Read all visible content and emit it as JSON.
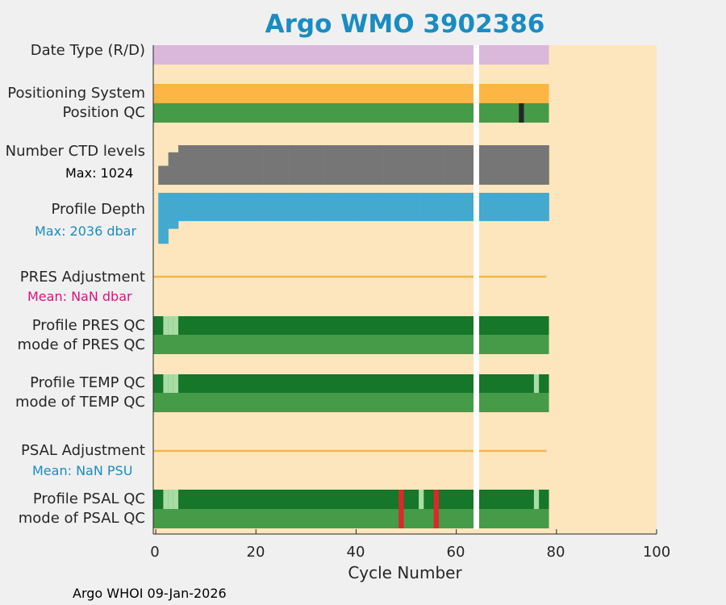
{
  "chart_data": {
    "type": "heatmap",
    "title": "Argo WMO 3902386",
    "xlabel": "Cycle Number",
    "xlim": [
      -0.5,
      100
    ],
    "xticks": [
      "0",
      "20",
      "40",
      "60",
      "80",
      "100"
    ],
    "tick_values": [
      0,
      20,
      40,
      60,
      80,
      100
    ],
    "gap_cycle": 64,
    "last_cycle": 78,
    "rows": [
      {
        "id": "date-type",
        "label": "Date Type (R/D)"
      },
      {
        "id": "positioning-system",
        "label": "Positioning System"
      },
      {
        "id": "position-qc",
        "label": "Position QC",
        "flags": [
          {
            "cycle": 73,
            "color": "#262626"
          }
        ]
      },
      {
        "id": "ctd-levels",
        "label": "Number CTD levels",
        "sub": "Max: 1024",
        "max": 1024
      },
      {
        "id": "profile-depth",
        "label": "Profile Depth",
        "sub": "Max: 2036 dbar",
        "max": 2036,
        "units": "dbar"
      },
      {
        "id": "pres-adjustment",
        "label": "PRES Adjustment",
        "sub": "Mean:  NaN dbar"
      },
      {
        "id": "profile-pres-qc",
        "label": "Profile PRES QC",
        "flags": [
          {
            "cycle": 2,
            "color": "#a9dca5"
          },
          {
            "cycle": 3,
            "color": "#a9dca5"
          },
          {
            "cycle": 4,
            "color": "#a9dca5"
          }
        ]
      },
      {
        "id": "mode-pres-qc",
        "label": "mode of PRES QC"
      },
      {
        "id": "profile-temp-qc",
        "label": "Profile TEMP QC",
        "flags": [
          {
            "cycle": 2,
            "color": "#a9dca5"
          },
          {
            "cycle": 3,
            "color": "#a9dca5"
          },
          {
            "cycle": 4,
            "color": "#a9dca5"
          },
          {
            "cycle": 76,
            "color": "#a9dca5"
          }
        ]
      },
      {
        "id": "mode-temp-qc",
        "label": "mode of TEMP QC"
      },
      {
        "id": "psal-adjustment",
        "label": "PSAL Adjustment",
        "sub": "Mean:  NaN PSU"
      },
      {
        "id": "profile-psal-qc",
        "label": "Profile PSAL QC",
        "flags": [
          {
            "cycle": 2,
            "color": "#a9dca5"
          },
          {
            "cycle": 3,
            "color": "#a9dca5"
          },
          {
            "cycle": 4,
            "color": "#a9dca5"
          },
          {
            "cycle": 49,
            "color": "#e2252b"
          },
          {
            "cycle": 53,
            "color": "#a9dca5"
          },
          {
            "cycle": 56,
            "color": "#e2252b"
          },
          {
            "cycle": 76,
            "color": "#a9dca5"
          }
        ]
      },
      {
        "id": "mode-psal-qc",
        "label": "mode of PSAL QC",
        "flags": [
          {
            "cycle": 49,
            "color": "#e2252b"
          },
          {
            "cycle": 56,
            "color": "#e2252b"
          }
        ]
      }
    ],
    "ctd_levels": [
      1,
      490,
      490,
      840,
      840,
      1024,
      1024,
      1024,
      1024,
      1024,
      1024,
      1024,
      1024,
      1024,
      1024,
      1024,
      1024,
      1024,
      1024,
      1024,
      1024,
      1024,
      1024,
      1024,
      1024,
      1024,
      1024,
      1024,
      1024,
      1024,
      1024,
      1024,
      1024,
      1024,
      1024,
      1024,
      1024,
      1024,
      1024,
      1024,
      1024,
      1024,
      1024,
      1024,
      1024,
      1024,
      1024,
      1024,
      1024,
      1024,
      1024,
      1024,
      1024,
      1024,
      1024,
      1024,
      1024,
      1024,
      1024,
      1024,
      1024,
      1024,
      1024,
      1024,
      0,
      1024,
      1024,
      1024,
      1024,
      1024,
      1024,
      1024,
      1024,
      1024,
      1024,
      1024,
      1024,
      1024,
      1024
    ],
    "profile_depth": [
      1,
      1980,
      1980,
      1400,
      1400,
      1100,
      1100,
      1100,
      1100,
      1100,
      1100,
      1100,
      1100,
      1100,
      1100,
      1100,
      1100,
      1100,
      1100,
      1100,
      1100,
      1100,
      1100,
      1100,
      1100,
      1100,
      1100,
      1100,
      1100,
      1100,
      1100,
      1100,
      1100,
      1100,
      1100,
      1100,
      1100,
      1100,
      1100,
      1100,
      1100,
      1100,
      1100,
      1100,
      1100,
      1100,
      1100,
      1100,
      1100,
      1100,
      1100,
      1100,
      1100,
      1100,
      1100,
      1100,
      1100,
      1100,
      1100,
      1100,
      1100,
      1100,
      1100,
      1100,
      0,
      1100,
      1100,
      1100,
      1100,
      1100,
      1100,
      1100,
      1100,
      1100,
      1100,
      1100,
      1100,
      1100,
      1100
    ],
    "colors": {
      "background": "#fde6bd",
      "date_type": "#d9b8db",
      "positioning": "#fdb644",
      "good_qc": "#459b47",
      "dark_qc": "#167629",
      "ctd": "#767676",
      "depth": "#43a9cf",
      "adjustment": "#f4b54a",
      "gap": "#ffffff"
    }
  },
  "footer": "Argo WHOI 09-Jan-2026"
}
